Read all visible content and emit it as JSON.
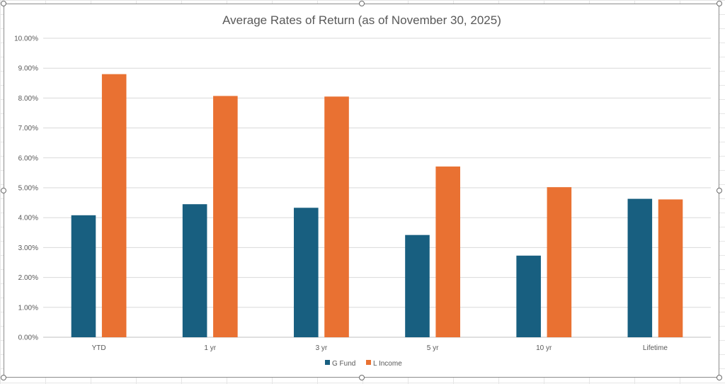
{
  "chart_data": {
    "type": "bar",
    "title": "Average Rates of Return (as of November 30, 2025)",
    "xlabel": "",
    "ylabel": "",
    "categories": [
      "YTD",
      "1 yr",
      "3 yr",
      "5 yr",
      "10 yr",
      "Lifetime"
    ],
    "series": [
      {
        "name": "G Fund",
        "color": "#185F80",
        "values": [
          4.08,
          4.45,
          4.33,
          3.42,
          2.73,
          4.63
        ]
      },
      {
        "name": "L Income",
        "color": "#E97132",
        "values": [
          8.8,
          8.07,
          8.05,
          5.71,
          5.02,
          4.61
        ]
      }
    ],
    "ylim": [
      0,
      10
    ],
    "y_ticks": [
      0,
      1,
      2,
      3,
      4,
      5,
      6,
      7,
      8,
      9,
      10
    ],
    "y_tick_format": "percent-2dp",
    "grid": true,
    "legend": "bottom-center"
  }
}
